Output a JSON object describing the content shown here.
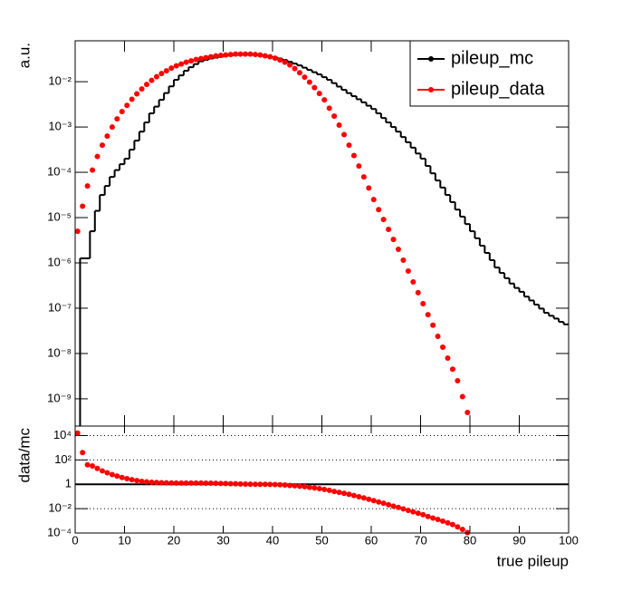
{
  "chart_data": [
    {
      "type": "histogram",
      "ylabel": "a.u.",
      "log_y": true,
      "legend": "top-right",
      "xlim": [
        0,
        100
      ],
      "ylim": [
        2.5e-10,
        0.08
      ],
      "yticks": [
        {
          "value": 0.01,
          "label": "10⁻²"
        },
        {
          "value": 0.001,
          "label": "10⁻³"
        },
        {
          "value": 0.0001,
          "label": "10⁻⁴"
        },
        {
          "value": 1e-05,
          "label": "10⁻⁵"
        },
        {
          "value": 1e-06,
          "label": "10⁻⁶"
        },
        {
          "value": 1e-07,
          "label": "10⁻⁷"
        },
        {
          "value": 1e-08,
          "label": "10⁻⁸"
        },
        {
          "value": 1e-09,
          "label": "10⁻⁹"
        }
      ],
      "bins": [
        0,
        1,
        2,
        3,
        4,
        5,
        6,
        7,
        8,
        9,
        10,
        11,
        12,
        13,
        14,
        15,
        16,
        17,
        18,
        19,
        20,
        21,
        22,
        23,
        24,
        25,
        26,
        27,
        28,
        29,
        30,
        31,
        32,
        33,
        34,
        35,
        36,
        37,
        38,
        39,
        40,
        41,
        42,
        43,
        44,
        45,
        46,
        47,
        48,
        49,
        50,
        51,
        52,
        53,
        54,
        55,
        56,
        57,
        58,
        59,
        60,
        61,
        62,
        63,
        64,
        65,
        66,
        67,
        68,
        69,
        70,
        71,
        72,
        73,
        74,
        75,
        76,
        77,
        78,
        79,
        80,
        81,
        82,
        83,
        84,
        85,
        86,
        87,
        88,
        89,
        90,
        91,
        92,
        93,
        94,
        95,
        96,
        97,
        98,
        99,
        100
      ],
      "series": [
        {
          "name": "pileup_mc",
          "color": "#000000",
          "style": "step",
          "values": [
            null,
            1.26e-06,
            1.26e-06,
            5e-06,
            1.41e-05,
            3.16e-05,
            5e-05,
            7.9e-05,
            0.000112,
            0.000151,
            0.0002,
            0.000316,
            0.0005,
            0.00079,
            0.00126,
            0.002,
            0.00282,
            0.00398,
            0.00562,
            0.0079,
            0.011,
            0.0138,
            0.0174,
            0.0209,
            0.0245,
            0.0282,
            0.0302,
            0.0324,
            0.0339,
            0.0355,
            0.0372,
            0.038,
            0.0389,
            0.0398,
            0.0398,
            0.0398,
            0.0398,
            0.0389,
            0.038,
            0.0363,
            0.0347,
            0.0324,
            0.0302,
            0.0275,
            0.0251,
            0.0229,
            0.0204,
            0.0182,
            0.0162,
            0.0145,
            0.0126,
            0.011,
            0.0093,
            0.0078,
            0.0066,
            0.0056,
            0.0048,
            0.0041,
            0.0035,
            0.00295,
            0.0025,
            0.002,
            0.00158,
            0.00126,
            0.001,
            0.00079,
            0.0006,
            0.00046,
            0.00035,
            0.00026,
            0.0002,
            0.000138,
            9.5e-05,
            6.6e-05,
            4.6e-05,
            3.16e-05,
            2.2e-05,
            1.5e-05,
            1.05e-05,
            7.2e-06,
            5e-06,
            3.5e-06,
            2.4e-06,
            1.66e-06,
            1.15e-06,
            7.9e-07,
            6e-07,
            4.6e-07,
            3.5e-07,
            2.8e-07,
            2.3e-07,
            1.8e-07,
            1.48e-07,
            1.2e-07,
            9.8e-08,
            7.9e-08,
            6.8e-08,
            5.9e-08,
            5e-08,
            4.4e-08
          ]
        },
        {
          "name": "pileup_data",
          "color": "#ff0000",
          "style": "markers",
          "values": [
            5e-06,
            1.78e-05,
            5e-05,
            0.000112,
            0.000224,
            0.000398,
            0.00063,
            0.001,
            0.00151,
            0.00219,
            0.003,
            0.0041,
            0.0054,
            0.0069,
            0.0087,
            0.0107,
            0.0129,
            0.0151,
            0.0174,
            0.02,
            0.0224,
            0.0245,
            0.0269,
            0.0288,
            0.0309,
            0.0324,
            0.0339,
            0.0355,
            0.0372,
            0.038,
            0.0389,
            0.0398,
            0.0407,
            0.0407,
            0.0407,
            0.0407,
            0.0398,
            0.0389,
            0.0372,
            0.0355,
            0.0331,
            0.0302,
            0.0269,
            0.0234,
            0.0195,
            0.0158,
            0.0126,
            0.0098,
            0.0074,
            0.0055,
            0.00398,
            0.0026,
            0.00174,
            0.0011,
            0.00068,
            0.000398,
            0.000234,
            0.000138,
            7.9e-05,
            4.5e-05,
            2.5e-05,
            1.5e-05,
            9.1e-06,
            5.5e-06,
            3.3e-06,
            2e-06,
            1.15e-06,
            6.6e-07,
            3.8e-07,
            2.2e-07,
            1.26e-07,
            7.2e-08,
            4.2e-08,
            2.4e-08,
            1.38e-08,
            7.9e-09,
            4.5e-09,
            2.5e-09,
            1.12e-09,
            5e-10,
            null,
            null,
            null,
            null,
            null,
            null,
            null,
            null,
            null,
            null,
            null,
            null,
            null,
            null,
            null,
            null,
            null,
            null,
            null,
            null
          ]
        }
      ]
    },
    {
      "type": "histogram",
      "ylabel": "data/mc",
      "xlabel": "true pileup",
      "log_y": true,
      "grid": true,
      "hline": 1,
      "xlim": [
        0,
        100
      ],
      "xticks": [
        0,
        10,
        20,
        30,
        40,
        50,
        60,
        70,
        80,
        90,
        100
      ],
      "ylim": [
        0.0001,
        60000
      ],
      "yticks": [
        {
          "value": 10000,
          "label": "10⁴"
        },
        {
          "value": 100,
          "label": "10²"
        },
        1,
        {
          "value": 0.01,
          "label": "10⁻²"
        },
        {
          "value": 0.0001,
          "label": "10⁻⁴"
        }
      ],
      "bins": [
        0,
        1,
        2,
        3,
        4,
        5,
        6,
        7,
        8,
        9,
        10,
        11,
        12,
        13,
        14,
        15,
        16,
        17,
        18,
        19,
        20,
        21,
        22,
        23,
        24,
        25,
        26,
        27,
        28,
        29,
        30,
        31,
        32,
        33,
        34,
        35,
        36,
        37,
        38,
        39,
        40,
        41,
        42,
        43,
        44,
        45,
        46,
        47,
        48,
        49,
        50,
        51,
        52,
        53,
        54,
        55,
        56,
        57,
        58,
        59,
        60,
        61,
        62,
        63,
        64,
        65,
        66,
        67,
        68,
        69,
        70,
        71,
        72,
        73,
        74,
        75,
        76,
        77,
        78,
        79,
        80,
        81,
        82,
        83,
        84,
        85,
        86,
        87,
        88,
        89,
        90,
        91,
        92,
        93,
        94,
        95,
        96,
        97,
        98,
        99,
        100
      ],
      "series": [
        {
          "color": "#ff0000",
          "style": "markers",
          "values": [
            16000,
            400,
            40,
            32,
            20,
            12.6,
            8.9,
            6.3,
            4.8,
            3.6,
            2.9,
            2.4,
            2.0,
            1.74,
            1.58,
            1.48,
            1.41,
            1.35,
            1.32,
            1.29,
            1.26,
            1.26,
            1.26,
            1.26,
            1.26,
            1.26,
            1.23,
            1.23,
            1.2,
            1.17,
            1.15,
            1.12,
            1.1,
            1.07,
            1.05,
            1.02,
            1.0,
            1.0,
            1.0,
            0.98,
            0.95,
            0.91,
            0.87,
            0.81,
            0.76,
            0.69,
            0.63,
            0.56,
            0.5,
            0.44,
            0.38,
            0.32,
            0.26,
            0.22,
            0.18,
            0.15,
            0.12,
            0.095,
            0.076,
            0.059,
            0.046,
            0.035,
            0.028,
            0.021,
            0.016,
            0.0126,
            0.0095,
            0.0072,
            0.0055,
            0.0042,
            0.0032,
            0.0023,
            0.0017,
            0.0013,
            0.00095,
            0.00069,
            0.0005,
            0.00032,
            0.0002,
            0.00011,
            null,
            null,
            null,
            null,
            null,
            null,
            null,
            null,
            null,
            null,
            null,
            null,
            null,
            null,
            null,
            null,
            null,
            null,
            null,
            null
          ]
        }
      ]
    }
  ]
}
